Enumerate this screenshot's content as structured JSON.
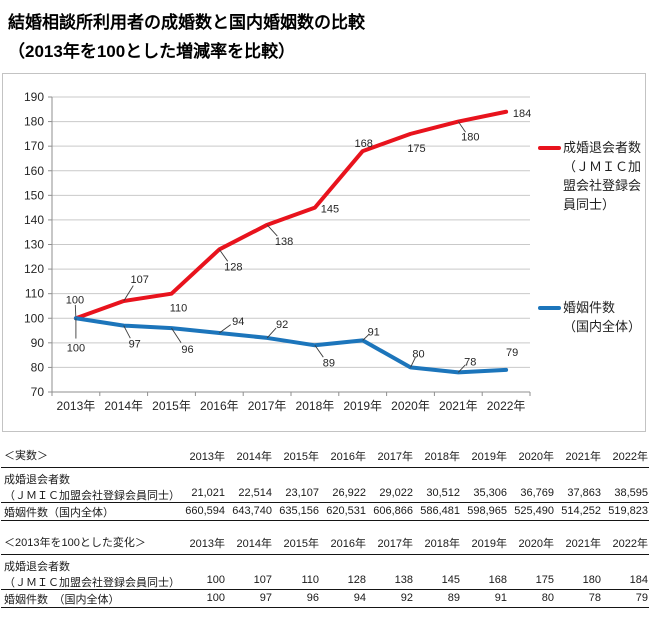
{
  "title": {
    "line1": "結婚相談所利用者の成婚数と国内婚姻数の比較",
    "line2": "（2013年を100とした増減率を比較）"
  },
  "chart_data": {
    "type": "line",
    "title": "結婚相談所利用者の成婚数と国内婚姻数の比較（2013年を100とした増減率を比較）",
    "categories": [
      "2013年",
      "2014年",
      "2015年",
      "2016年",
      "2017年",
      "2018年",
      "2019年",
      "2020年",
      "2021年",
      "2022年"
    ],
    "ylim": [
      70,
      190
    ],
    "ytick_step": 10,
    "grid": true,
    "legend_position": "right",
    "show_data_labels": true,
    "series": [
      {
        "name": "成婚退会者数（ＪＭＩＣ加盟会社登録会員同士）",
        "legend_label": "成婚退会者数\n（ＪＭＩＣ加盟会社登録会員同士）",
        "color": "#e8131d",
        "values": [
          100,
          107,
          110,
          128,
          138,
          145,
          168,
          175,
          180,
          184
        ],
        "label_offsets": [
          [
            -1,
            -19
          ],
          [
            16,
            -22
          ],
          [
            7,
            14
          ],
          [
            14,
            17
          ],
          [
            17,
            16
          ],
          [
            15,
            1
          ],
          [
            1,
            -8
          ],
          [
            6,
            14
          ],
          [
            12,
            15
          ],
          [
            16,
            1
          ]
        ],
        "label_leaders": [
          true,
          true,
          false,
          true,
          true,
          false,
          false,
          false,
          true,
          false
        ]
      },
      {
        "name": "婚姻件数（国内全体）",
        "legend_label": "婚姻件数\n（国内全体）",
        "color": "#1c75bb",
        "values": [
          100,
          97,
          96,
          94,
          92,
          89,
          91,
          80,
          78,
          79
        ],
        "label_offsets": [
          [
            0,
            29
          ],
          [
            11,
            18
          ],
          [
            16,
            21
          ],
          [
            19,
            -12
          ],
          [
            15,
            -14
          ],
          [
            14,
            17
          ],
          [
            11,
            -9
          ],
          [
            8,
            -14
          ],
          [
            12,
            -11
          ],
          [
            6,
            -18
          ]
        ],
        "label_leaders": [
          true,
          true,
          true,
          true,
          true,
          true,
          true,
          true,
          true,
          false
        ]
      }
    ]
  },
  "tables": [
    {
      "title": "＜実数＞",
      "columns": [
        "2013年",
        "2014年",
        "2015年",
        "2016年",
        "2017年",
        "2018年",
        "2019年",
        "2020年",
        "2021年",
        "2022年"
      ],
      "rows": [
        {
          "label": [
            "成婚退会者数",
            "（ＪＭＩＣ加盟会社登録会員同士）"
          ],
          "values": [
            "21,021",
            "22,514",
            "23,107",
            "26,922",
            "29,022",
            "30,512",
            "35,306",
            "36,769",
            "37,863",
            "38,595"
          ]
        },
        {
          "label": [
            "婚姻件数（国内全体）"
          ],
          "values": [
            "660,594",
            "643,740",
            "635,156",
            "620,531",
            "606,866",
            "586,481",
            "598,965",
            "525,490",
            "514,252",
            "519,823"
          ]
        }
      ]
    },
    {
      "title": "＜2013年を100とした変化＞",
      "columns": [
        "2013年",
        "2014年",
        "2015年",
        "2016年",
        "2017年",
        "2018年",
        "2019年",
        "2020年",
        "2021年",
        "2022年"
      ],
      "rows": [
        {
          "label": [
            "成婚退会者数",
            "（ＪＭＩＣ加盟会社登録会員同士）"
          ],
          "values": [
            "100",
            "107",
            "110",
            "128",
            "138",
            "145",
            "168",
            "175",
            "180",
            "184"
          ]
        },
        {
          "label": [
            "婚姻件数　（国内全体）"
          ],
          "values": [
            "100",
            "97",
            "96",
            "94",
            "92",
            "89",
            "91",
            "80",
            "78",
            "79"
          ]
        }
      ]
    }
  ]
}
